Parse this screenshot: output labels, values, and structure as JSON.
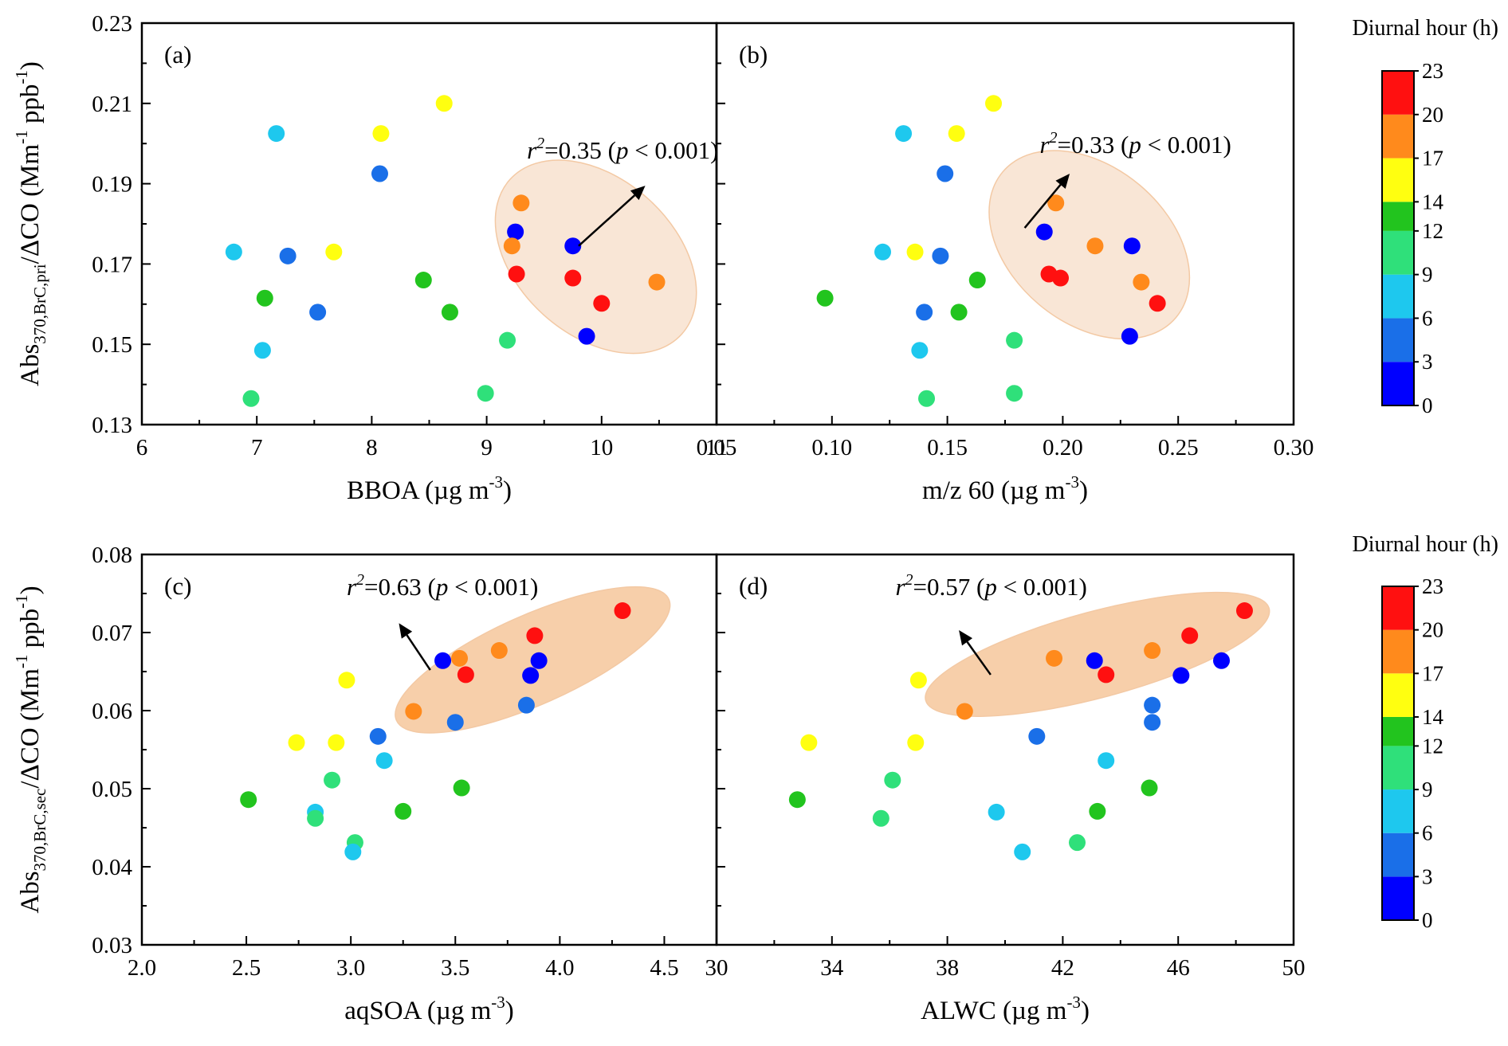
{
  "chart_data": [
    {
      "panel": "(a)",
      "type": "scatter",
      "xlabel": "BBOA (µg m-3)",
      "x_unit_sup": "-3",
      "ylabel": "Abs370,BrC,pri/ΔCO (Mm-1 ppb-1)",
      "xlim": [
        6,
        11
      ],
      "ylim": [
        0.13,
        0.23
      ],
      "xticks": [
        6,
        7,
        8,
        9,
        10,
        11
      ],
      "yticks": [
        0.13,
        0.15,
        0.17,
        0.19,
        0.21,
        0.23
      ],
      "annotation": "r2=0.35 (p < 0.001)",
      "points": [
        {
          "x": 6.8,
          "y": 0.173,
          "hour": 8
        },
        {
          "x": 7.17,
          "y": 0.2025,
          "hour": 8
        },
        {
          "x": 7.27,
          "y": 0.172,
          "hour": 5
        },
        {
          "x": 7.07,
          "y": 0.1615,
          "hour": 13
        },
        {
          "x": 7.53,
          "y": 0.158,
          "hour": 5
        },
        {
          "x": 7.05,
          "y": 0.1485,
          "hour": 8
        },
        {
          "x": 6.95,
          "y": 0.1365,
          "hour": 11
        },
        {
          "x": 7.67,
          "y": 0.173,
          "hour": 16
        },
        {
          "x": 8.07,
          "y": 0.1925,
          "hour": 4
        },
        {
          "x": 8.08,
          "y": 0.2025,
          "hour": 16
        },
        {
          "x": 8.63,
          "y": 0.21,
          "hour": 16
        },
        {
          "x": 8.45,
          "y": 0.166,
          "hour": 13
        },
        {
          "x": 8.68,
          "y": 0.158,
          "hour": 13
        },
        {
          "x": 9.18,
          "y": 0.151,
          "hour": 11
        },
        {
          "x": 8.99,
          "y": 0.1378,
          "hour": 11
        },
        {
          "x": 9.3,
          "y": 0.1852,
          "hour": 19
        },
        {
          "x": 9.25,
          "y": 0.178,
          "hour": 1
        },
        {
          "x": 9.22,
          "y": 0.1745,
          "hour": 19
        },
        {
          "x": 9.26,
          "y": 0.1675,
          "hour": 22
        },
        {
          "x": 9.75,
          "y": 0.1745,
          "hour": 1
        },
        {
          "x": 9.75,
          "y": 0.1665,
          "hour": 22
        },
        {
          "x": 10.0,
          "y": 0.1602,
          "hour": 22
        },
        {
          "x": 9.87,
          "y": 0.152,
          "hour": 1
        },
        {
          "x": 10.48,
          "y": 0.1655,
          "hour": 19
        }
      ]
    },
    {
      "panel": "(b)",
      "type": "scatter",
      "xlabel": "m/z 60 (µg m-3)",
      "x_unit_sup": "-3",
      "xlim": [
        0.05,
        0.3
      ],
      "ylim": [
        0.13,
        0.23
      ],
      "xticks": [
        "0.05",
        "0.10",
        "0.15",
        "0.20",
        "0.25",
        "0.30"
      ],
      "annotation": "r2=0.33 (p < 0.001)",
      "points": [
        {
          "x": 0.131,
          "y": 0.2025,
          "hour": 8
        },
        {
          "x": 0.154,
          "y": 0.2025,
          "hour": 16
        },
        {
          "x": 0.17,
          "y": 0.21,
          "hour": 16
        },
        {
          "x": 0.149,
          "y": 0.1925,
          "hour": 4
        },
        {
          "x": 0.122,
          "y": 0.173,
          "hour": 8
        },
        {
          "x": 0.136,
          "y": 0.173,
          "hour": 16
        },
        {
          "x": 0.147,
          "y": 0.172,
          "hour": 5
        },
        {
          "x": 0.097,
          "y": 0.1615,
          "hour": 13
        },
        {
          "x": 0.14,
          "y": 0.158,
          "hour": 5
        },
        {
          "x": 0.155,
          "y": 0.158,
          "hour": 13
        },
        {
          "x": 0.163,
          "y": 0.166,
          "hour": 13
        },
        {
          "x": 0.138,
          "y": 0.1485,
          "hour": 8
        },
        {
          "x": 0.141,
          "y": 0.1365,
          "hour": 11
        },
        {
          "x": 0.179,
          "y": 0.151,
          "hour": 11
        },
        {
          "x": 0.179,
          "y": 0.1378,
          "hour": 11
        },
        {
          "x": 0.197,
          "y": 0.1852,
          "hour": 19
        },
        {
          "x": 0.192,
          "y": 0.178,
          "hour": 1
        },
        {
          "x": 0.214,
          "y": 0.1745,
          "hour": 19
        },
        {
          "x": 0.23,
          "y": 0.1745,
          "hour": 1
        },
        {
          "x": 0.194,
          "y": 0.1675,
          "hour": 22
        },
        {
          "x": 0.199,
          "y": 0.1665,
          "hour": 22
        },
        {
          "x": 0.234,
          "y": 0.1655,
          "hour": 19
        },
        {
          "x": 0.241,
          "y": 0.1602,
          "hour": 22
        },
        {
          "x": 0.229,
          "y": 0.152,
          "hour": 1
        }
      ]
    },
    {
      "panel": "(c)",
      "type": "scatter",
      "xlabel": "aqSOA (µg m-3)",
      "x_unit_sup": "-3",
      "ylabel": "Abs370,BrC,sec/ΔCO (Mm-1 ppb-1)",
      "xlim": [
        2.0,
        4.75
      ],
      "ylim": [
        0.03,
        0.08
      ],
      "xticks": [
        "2.0",
        "2.5",
        "3.0",
        "3.5",
        "4.0",
        "4.5"
      ],
      "yticks": [
        "0.03",
        "0.04",
        "0.05",
        "0.06",
        "0.07",
        "0.08"
      ],
      "annotation": "r2=0.63 (p < 0.001)",
      "points": [
        {
          "x": 4.3,
          "y": 0.0728,
          "hour": 22
        },
        {
          "x": 3.88,
          "y": 0.0696,
          "hour": 22
        },
        {
          "x": 3.71,
          "y": 0.0677,
          "hour": 19
        },
        {
          "x": 3.52,
          "y": 0.0667,
          "hour": 19
        },
        {
          "x": 3.44,
          "y": 0.0664,
          "hour": 1
        },
        {
          "x": 3.9,
          "y": 0.0664,
          "hour": 1
        },
        {
          "x": 3.55,
          "y": 0.0646,
          "hour": 22
        },
        {
          "x": 3.86,
          "y": 0.0645,
          "hour": 1
        },
        {
          "x": 3.84,
          "y": 0.0607,
          "hour": 5
        },
        {
          "x": 3.3,
          "y": 0.0599,
          "hour": 19
        },
        {
          "x": 3.5,
          "y": 0.0585,
          "hour": 5
        },
        {
          "x": 2.98,
          "y": 0.0639,
          "hour": 16
        },
        {
          "x": 3.13,
          "y": 0.0567,
          "hour": 5
        },
        {
          "x": 2.74,
          "y": 0.0559,
          "hour": 16
        },
        {
          "x": 2.93,
          "y": 0.0559,
          "hour": 16
        },
        {
          "x": 3.16,
          "y": 0.0536,
          "hour": 8
        },
        {
          "x": 2.91,
          "y": 0.0511,
          "hour": 11
        },
        {
          "x": 3.53,
          "y": 0.0501,
          "hour": 13
        },
        {
          "x": 2.51,
          "y": 0.0486,
          "hour": 13
        },
        {
          "x": 2.83,
          "y": 0.047,
          "hour": 8
        },
        {
          "x": 3.25,
          "y": 0.0471,
          "hour": 13
        },
        {
          "x": 2.83,
          "y": 0.0462,
          "hour": 11
        },
        {
          "x": 3.02,
          "y": 0.0431,
          "hour": 11
        },
        {
          "x": 3.01,
          "y": 0.0419,
          "hour": 8
        }
      ]
    },
    {
      "panel": "(d)",
      "type": "scatter",
      "xlabel": "ALWC (µg m-3)",
      "x_unit_sup": "-3",
      "xlim": [
        30,
        50
      ],
      "ylim": [
        0.03,
        0.08
      ],
      "xticks": [
        30,
        34,
        38,
        42,
        46,
        50
      ],
      "annotation": "r2=0.57 (p < 0.001)",
      "points": [
        {
          "x": 48.3,
          "y": 0.0728,
          "hour": 22
        },
        {
          "x": 46.4,
          "y": 0.0696,
          "hour": 22
        },
        {
          "x": 45.1,
          "y": 0.0677,
          "hour": 19
        },
        {
          "x": 41.7,
          "y": 0.0667,
          "hour": 19
        },
        {
          "x": 43.1,
          "y": 0.0664,
          "hour": 1
        },
        {
          "x": 47.5,
          "y": 0.0664,
          "hour": 1
        },
        {
          "x": 43.5,
          "y": 0.0646,
          "hour": 22
        },
        {
          "x": 46.1,
          "y": 0.0645,
          "hour": 1
        },
        {
          "x": 45.1,
          "y": 0.0607,
          "hour": 5
        },
        {
          "x": 38.6,
          "y": 0.0599,
          "hour": 19
        },
        {
          "x": 45.1,
          "y": 0.0585,
          "hour": 5
        },
        {
          "x": 37.0,
          "y": 0.0639,
          "hour": 16
        },
        {
          "x": 41.1,
          "y": 0.0567,
          "hour": 5
        },
        {
          "x": 33.2,
          "y": 0.0559,
          "hour": 16
        },
        {
          "x": 36.9,
          "y": 0.0559,
          "hour": 16
        },
        {
          "x": 43.5,
          "y": 0.0536,
          "hour": 8
        },
        {
          "x": 36.1,
          "y": 0.0511,
          "hour": 11
        },
        {
          "x": 45.0,
          "y": 0.0501,
          "hour": 13
        },
        {
          "x": 32.8,
          "y": 0.0486,
          "hour": 13
        },
        {
          "x": 39.7,
          "y": 0.047,
          "hour": 8
        },
        {
          "x": 43.2,
          "y": 0.0471,
          "hour": 13
        },
        {
          "x": 35.7,
          "y": 0.0462,
          "hour": 11
        },
        {
          "x": 42.5,
          "y": 0.0431,
          "hour": 11
        },
        {
          "x": 40.6,
          "y": 0.0419,
          "hour": 8
        }
      ]
    }
  ],
  "colorbar": {
    "title": "Diurnal hour (h)",
    "ticks": [
      0,
      3,
      6,
      9,
      12,
      14,
      17,
      20,
      23
    ],
    "segment_colors": [
      "#0000ff",
      "#1a6fe8",
      "#1ec8ee",
      "#2fe07a",
      "#22c41e",
      "#ffff10",
      "#ff8a1c",
      "#ff1010"
    ]
  },
  "colors": {
    "ellipse_fill_top": "#f9e6d6",
    "ellipse_fill_bottom": "#f7cfaa",
    "ellipse_stroke": "#f3c9a4"
  }
}
